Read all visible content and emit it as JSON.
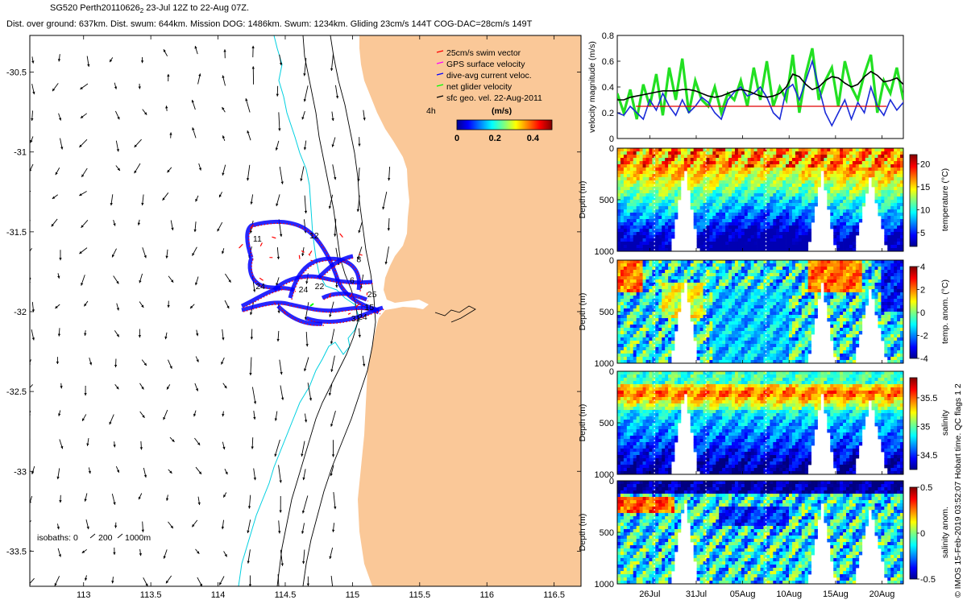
{
  "header": {
    "line1_main": "SG520 Perth20110626",
    "line1_sub": "2",
    "line1_rest": " 23-Jul 12Z to 22-Aug 07Z.",
    "line2": "Dist. over ground: 637km. Dist. swum: 644km. Mission DOG: 1486km. Swum: 1234km. Gliding 23cm/s 144T COG-DAC=28cm/s 149T"
  },
  "side_note": "© IMOS 15-Feb-2019 03:52:07 Hobart time. QC flags 1  2",
  "colors": {
    "land": "#fac898",
    "swim_vector": "#ff0000",
    "gps": "#ff00ff",
    "dac": "#0000ff",
    "net": "#00ff00",
    "sfc": "#000000",
    "isobath_0": "#00d0e0",
    "isobath": "#000000",
    "dac_speed_line": "#1a2ad8",
    "net_speed_line": "#22e022",
    "sfc_speed_line": "#000000",
    "swim_speed_line": "#e00000"
  },
  "chart_data": [
    {
      "type": "map",
      "name": "track-map",
      "x_ticks": [
        "113",
        "113.5",
        "114",
        "114.5",
        "115",
        "115.5",
        "116",
        "116.5"
      ],
      "y_ticks": [
        "-30.5",
        "-31",
        "-31.5",
        "-32",
        "-32.5",
        "-33",
        "-33.5"
      ],
      "xlim": [
        112.6,
        116.7
      ],
      "ylim": [
        -33.72,
        -30.27
      ],
      "legend": [
        {
          "label": "25cm/s swim vector",
          "color": "#ff0000"
        },
        {
          "label": "GPS surface velocity",
          "color": "#ff00ff"
        },
        {
          "label": "dive-avg current veloc.",
          "color": "#0000ff"
        },
        {
          "label": "net glider velocity",
          "color": "#00ff00"
        },
        {
          "label": "sfc geo. vel. 22-Aug-2011",
          "color": "#000000"
        }
      ],
      "colorbar": {
        "label_left": "4h",
        "title": "(m/s)",
        "ticks": [
          "0",
          "0.2",
          "0.4"
        ],
        "range": [
          0,
          0.5
        ]
      },
      "isobath_label": "isobaths: 0 ",
      "isobath_values": [
        "200",
        "1000m"
      ],
      "track_labels": [
        {
          "text": "11",
          "lon": 114.26,
          "lat": -31.56
        },
        {
          "text": "12",
          "lon": 114.68,
          "lat": -31.54
        },
        {
          "text": "8",
          "lon": 115.03,
          "lat": -31.69
        },
        {
          "text": "6",
          "lon": 114.98,
          "lat": -31.82
        },
        {
          "text": "25",
          "lon": 115.11,
          "lat": -31.91
        },
        {
          "text": "15",
          "lon": 115.09,
          "lat": -31.99
        },
        {
          "text": "24",
          "lon": 114.28,
          "lat": -31.86
        },
        {
          "text": "24",
          "lon": 114.6,
          "lat": -31.88
        },
        {
          "text": "22",
          "lon": 114.72,
          "lat": -31.86
        },
        {
          "text": "31",
          "lon": 114.99,
          "lat": -32.06
        },
        {
          "text": "24",
          "lon": 115.04,
          "lat": -32.05
        }
      ]
    },
    {
      "type": "line",
      "name": "velocity-panel",
      "ylabel": "velocity magnitude (m/s)",
      "y_ticks": [
        "0",
        "0.2",
        "0.4",
        "0.6",
        "0.8"
      ],
      "ylim": [
        0,
        0.8
      ],
      "xlim": [
        0,
        30.8
      ],
      "series": [
        {
          "key": "net",
          "values": [
            0.35,
            0.2,
            0.38,
            0.15,
            0.42,
            0.25,
            0.5,
            0.18,
            0.55,
            0.3,
            0.62,
            0.2,
            0.45,
            0.3,
            0.25,
            0.4,
            0.2,
            0.35,
            0.3,
            0.45,
            0.25,
            0.55,
            0.3,
            0.6,
            0.25,
            0.4,
            0.3,
            0.65,
            0.2,
            0.5,
            0.7,
            0.3,
            0.45,
            0.55,
            0.25,
            0.6,
            0.4,
            0.3,
            0.5,
            0.65,
            0.2,
            0.45,
            0.35,
            0.55,
            0.3
          ]
        },
        {
          "key": "dac",
          "values": [
            0.2,
            0.18,
            0.25,
            0.2,
            0.15,
            0.3,
            0.22,
            0.35,
            0.25,
            0.18,
            0.3,
            0.2,
            0.25,
            0.32,
            0.28,
            0.2,
            0.15,
            0.3,
            0.36,
            0.4,
            0.33,
            0.35,
            0.4,
            0.32,
            0.2,
            0.15,
            0.38,
            0.42,
            0.3,
            0.45,
            0.6,
            0.4,
            0.2,
            0.1,
            0.2,
            0.3,
            0.15,
            0.28,
            0.2,
            0.4,
            0.25,
            0.18,
            0.3,
            0.22,
            0.28
          ]
        },
        {
          "key": "sfc",
          "values": [
            0.3,
            0.3,
            0.32,
            0.33,
            0.34,
            0.35,
            0.36,
            0.37,
            0.37,
            0.37,
            0.38,
            0.38,
            0.37,
            0.35,
            0.33,
            0.32,
            0.33,
            0.35,
            0.37,
            0.38,
            0.37,
            0.35,
            0.33,
            0.32,
            0.33,
            0.35,
            0.4,
            0.5,
            0.48,
            0.42,
            0.38,
            0.4,
            0.45,
            0.48,
            0.47,
            0.43,
            0.4,
            0.42,
            0.48,
            0.52,
            0.49,
            0.44,
            0.45,
            0.47,
            0.42
          ]
        },
        {
          "key": "swim",
          "values": [
            0.25,
            0.25
          ]
        }
      ]
    },
    {
      "type": "heatmap",
      "name": "temperature-section",
      "ylabel": "Depth (m)",
      "cbar_label": "temperature (°C)",
      "cbar_ticks": [
        "5",
        "10",
        "15",
        "20"
      ],
      "clim": [
        2,
        22
      ],
      "y_ticks": [
        "0",
        "500",
        "1000"
      ],
      "ylim": [
        0,
        1000
      ]
    },
    {
      "type": "heatmap",
      "name": "temp-anomaly-section",
      "ylabel": "Depth (m)",
      "cbar_label": "temp. anom. (°C)",
      "cbar_ticks": [
        "-4",
        "-2",
        "0",
        "2",
        "4"
      ],
      "clim": [
        -4,
        4
      ],
      "y_ticks": [
        "0",
        "500",
        "1000"
      ],
      "ylim": [
        0,
        1000
      ]
    },
    {
      "type": "heatmap",
      "name": "salinity-section",
      "ylabel": "Depth (m)",
      "cbar_label": "salinity",
      "cbar_ticks": [
        "34.5",
        "35",
        "35.5"
      ],
      "clim": [
        34.25,
        35.85
      ],
      "y_ticks": [
        "0",
        "500",
        "1000"
      ],
      "ylim": [
        0,
        1000
      ]
    },
    {
      "type": "heatmap",
      "name": "salinity-anomaly-section",
      "ylabel": "Depth (m)",
      "cbar_label": "salinity anom.",
      "cbar_ticks": [
        "-0.5",
        "0",
        "0.5"
      ],
      "clim": [
        -0.5,
        0.5
      ],
      "y_ticks": [
        "0",
        "500",
        "1000"
      ],
      "ylim": [
        0,
        1000
      ]
    },
    {
      "type": "axis",
      "name": "time-axis",
      "x_ticks": [
        "26Jul",
        "31Jul",
        "05Aug",
        "10Aug",
        "15Aug",
        "20Aug"
      ],
      "x_tick_days": [
        3.5,
        8.5,
        13.5,
        18.5,
        23.5,
        28.5
      ]
    }
  ]
}
